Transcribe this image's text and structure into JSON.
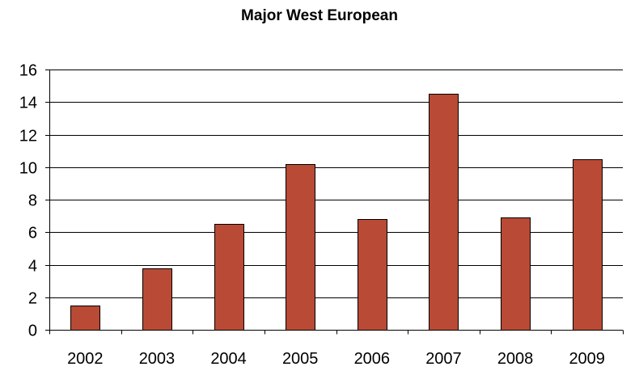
{
  "chart_data": {
    "type": "bar",
    "title": "Major West European",
    "categories": [
      "2002",
      "2003",
      "2004",
      "2005",
      "2006",
      "2007",
      "2008",
      "2009"
    ],
    "values": [
      1.5,
      3.8,
      6.5,
      10.2,
      6.8,
      14.5,
      6.9,
      10.5
    ],
    "xlabel": "",
    "ylabel": "",
    "ylim": [
      0,
      16
    ],
    "yticks": [
      "0",
      "2",
      "4",
      "6",
      "8",
      "10",
      "12",
      "14",
      "16"
    ],
    "grid": true,
    "legend": "none",
    "colors": {
      "bar": "#b94a35",
      "bar_border": "#000000",
      "grid": "#000000"
    }
  }
}
